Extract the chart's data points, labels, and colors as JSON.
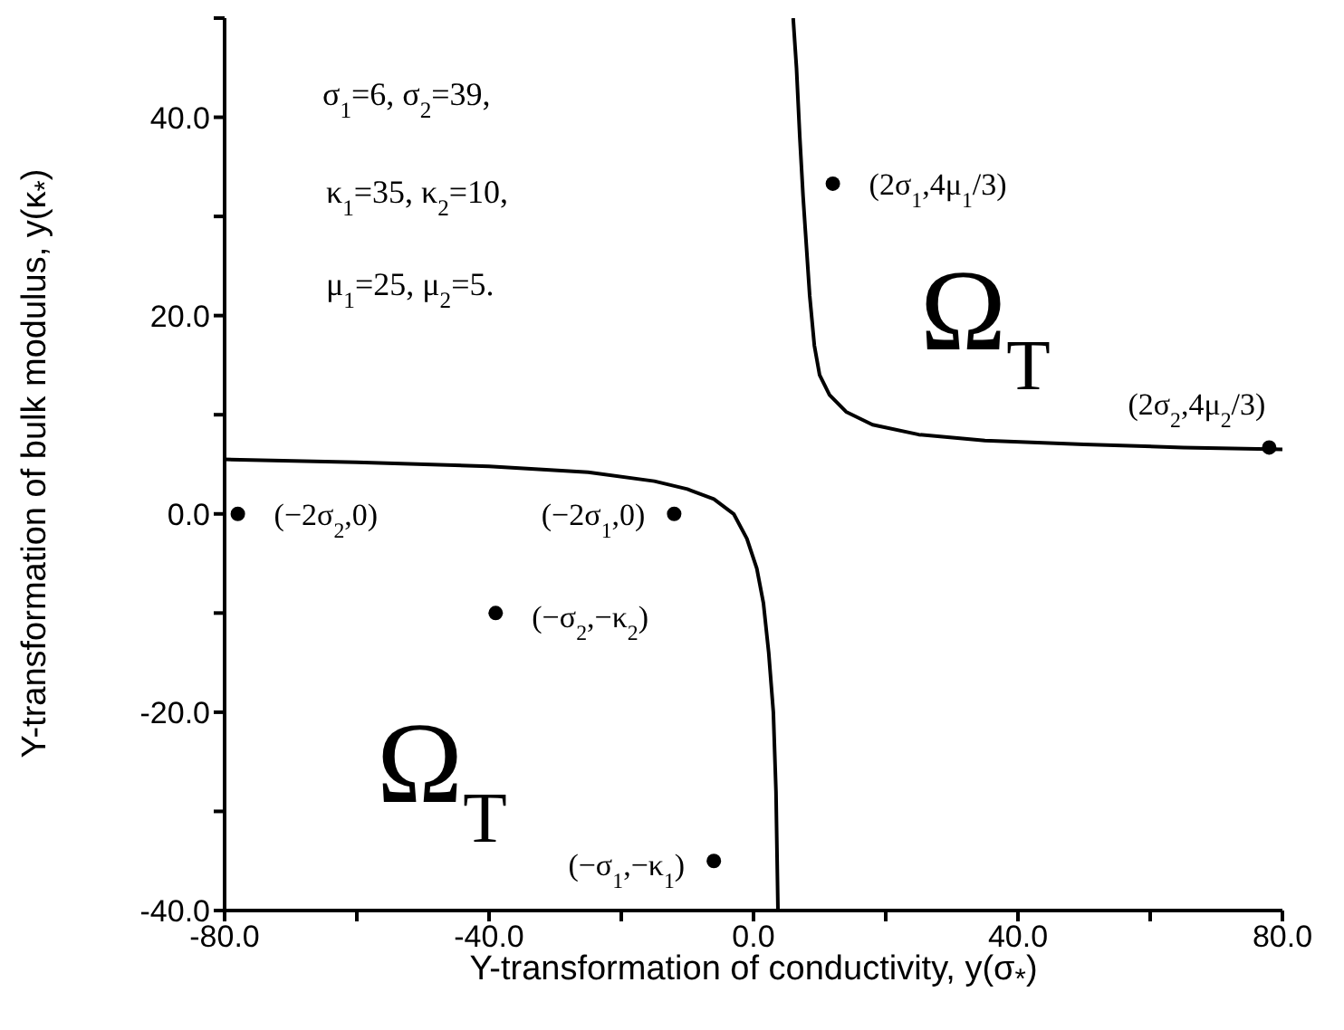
{
  "chart_data": {
    "type": "scatter",
    "xlabel": "Y-transformation of conductivity, y(σ$_{*}$)",
    "ylabel": "Y-transformation of bulk modulus, y(κ$_{*}$)",
    "xlim": [
      -80,
      80
    ],
    "ylim": [
      -40,
      50
    ],
    "xticks": [
      {
        "value": -80,
        "label": "-80.0"
      },
      {
        "value": -60,
        "label": null
      },
      {
        "value": -40,
        "label": "-40.0"
      },
      {
        "value": -20,
        "label": null
      },
      {
        "value": 0,
        "label": "0.0"
      },
      {
        "value": 20,
        "label": null
      },
      {
        "value": 40,
        "label": "40.0"
      },
      {
        "value": 60,
        "label": null
      },
      {
        "value": 80,
        "label": "80.0"
      }
    ],
    "yticks": [
      {
        "value": -40,
        "label": "-40.0"
      },
      {
        "value": -30,
        "label": null
      },
      {
        "value": -20,
        "label": "-20.0"
      },
      {
        "value": -10,
        "label": null
      },
      {
        "value": 0,
        "label": "0.0"
      },
      {
        "value": 10,
        "label": null
      },
      {
        "value": 20,
        "label": "20.0"
      },
      {
        "value": 30,
        "label": null
      },
      {
        "value": 40,
        "label": "40.0"
      },
      {
        "value": 50,
        "label": null
      }
    ],
    "grid": false,
    "legend": false,
    "series": [
      {
        "type": "line",
        "color": "#000000",
        "marker": "none",
        "line_style": "solid",
        "x": [
          6,
          6.5,
          7,
          7.5,
          8,
          8.5,
          9.2,
          10,
          11.5,
          14,
          18,
          25,
          35,
          50,
          65,
          80
        ],
        "values": [
          50,
          45,
          38,
          32,
          27,
          22,
          17,
          14,
          12,
          10.3,
          9,
          8,
          7.4,
          7,
          6.7,
          6.5
        ]
      },
      {
        "type": "line",
        "color": "#000000",
        "marker": "none",
        "line_style": "solid",
        "x": [
          -80,
          -60,
          -40,
          -25,
          -15,
          -10,
          -6,
          -3,
          -1,
          0.5,
          1.5,
          2.3,
          3,
          3.4,
          3.7
        ],
        "values": [
          5.5,
          5.2,
          4.8,
          4.2,
          3.3,
          2.5,
          1.5,
          0,
          -2.5,
          -5.5,
          -9,
          -14,
          -20,
          -28,
          -40
        ]
      },
      {
        "color": "#000000",
        "marker": "circle",
        "x": [
          -78,
          -12,
          -39,
          -6,
          12,
          78
        ],
        "values": [
          0,
          0,
          -10,
          -35,
          33.3,
          6.7
        ]
      }
    ],
    "annotations": [
      {
        "text": "(−2σ$_{2}$,0)",
        "x": -78,
        "y": 0
      },
      {
        "text": "(−2σ$_{1}$,0)",
        "x": -12,
        "y": 0
      },
      {
        "text": "(−σ$_{2}$,−κ$_{2}$)",
        "x": -39,
        "y": -10
      },
      {
        "text": "(−σ$_{1}$,−κ$_{1}$)",
        "x": -6,
        "y": -35
      },
      {
        "text": "(2σ$_{1}$,4μ$_{1}$/3)",
        "x": 12,
        "y": 33.3
      },
      {
        "text": "(2σ$_{2}$,4μ$_{2}$/3)",
        "x": 78,
        "y": 6.7
      },
      "σ$_{1}$=6, σ$_{2}$=39,",
      "κ$_{1}$=35, κ$_{2}$=10,",
      "μ$_{1}$=25, μ$_{2}$=5.",
      "Ω$_{T}$",
      "Ω$_{T}$"
    ]
  }
}
